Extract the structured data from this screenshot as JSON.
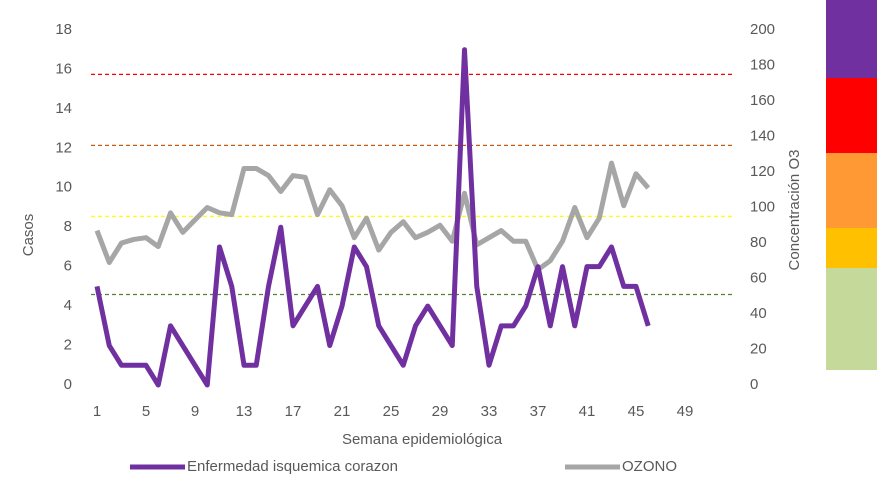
{
  "chart_data": {
    "type": "line",
    "x_label": "Semana epidemiológica",
    "y_label": "Casos",
    "y2_label": "Concentración O3",
    "categories": [
      "1",
      null,
      null,
      null,
      "5",
      null,
      null,
      null,
      "9",
      null,
      null,
      null,
      "13",
      null,
      null,
      null,
      "17",
      null,
      null,
      null,
      "21",
      null,
      null,
      null,
      "25",
      null,
      null,
      null,
      "29",
      null,
      null,
      null,
      "33",
      null,
      null,
      null,
      "37",
      null,
      null,
      null,
      "41",
      null,
      null,
      null,
      "45",
      null,
      null,
      null,
      "49",
      null,
      null,
      null
    ],
    "series": [
      {
        "name": "Enfermedad isquemica corazon",
        "color": "#7030a0",
        "values": [
          5,
          2,
          1,
          1,
          1,
          0,
          3,
          2,
          1,
          0,
          7,
          5,
          1,
          1,
          5,
          8,
          3,
          4,
          5,
          2,
          4,
          7,
          6,
          3,
          2,
          1,
          3,
          4,
          3,
          2,
          17,
          5,
          1,
          3,
          3,
          4,
          6,
          3,
          6,
          3,
          6,
          6,
          7,
          5,
          5,
          3,
          null,
          null,
          null,
          null,
          null,
          null
        ]
      },
      {
        "name": "OZONO",
        "color": "#a6a6a6",
        "axis": "y2",
        "values": [
          87,
          69,
          80,
          82,
          83,
          78,
          97,
          86,
          93,
          100,
          97,
          96,
          122,
          122,
          118,
          109,
          118,
          117,
          96,
          110,
          101,
          83,
          94,
          76,
          86,
          92,
          83,
          86,
          90,
          81,
          108,
          79,
          83,
          87,
          81,
          81,
          65,
          70,
          81,
          100,
          83,
          94,
          125,
          101,
          119,
          111,
          null,
          null,
          null,
          null,
          null,
          null
        ]
      }
    ],
    "reference_lines": [
      {
        "value": 51,
        "color": "#548235",
        "axis": "y2"
      },
      {
        "value": 95,
        "color": "#ffff00",
        "axis": "y2"
      },
      {
        "value": 135,
        "color": "#c55a11",
        "axis": "y2"
      },
      {
        "value": 175,
        "color": "#ff0000",
        "axis": "y2"
      }
    ],
    "ylim": [
      0,
      18
    ],
    "yticks": [
      0,
      2,
      4,
      6,
      8,
      10,
      12,
      14,
      16,
      18
    ],
    "y2lim": [
      0,
      200
    ],
    "y2ticks": [
      0,
      20,
      40,
      60,
      80,
      100,
      120,
      140,
      160,
      180,
      200
    ],
    "legend": "bottom"
  }
}
